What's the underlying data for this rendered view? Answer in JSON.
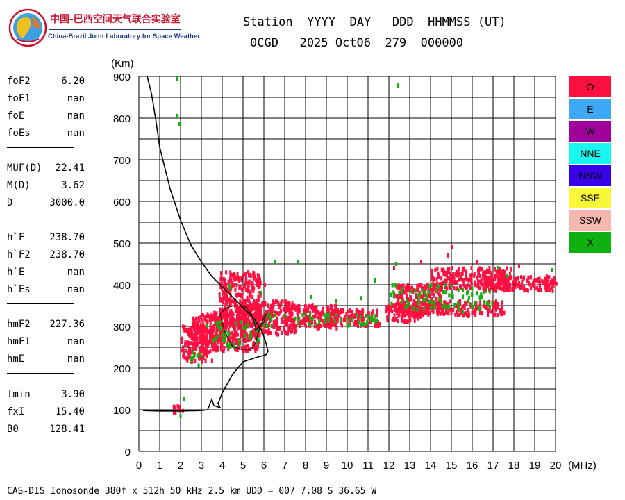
{
  "logo": {
    "icon": "earth-globe-logo",
    "name_cn": "中国-巴西空间天气联合实验室",
    "name_en": "China-Brazil Joint Laboratory for Space Weather"
  },
  "header": {
    "line1": "Station  YYYY  DAY   DDD  HHMMSS (UT)",
    "line2": "0CGD   2025 Oct06  279  000000"
  },
  "params": [
    {
      "label": "foF2",
      "value": "6.20"
    },
    {
      "label": "foF1",
      "value": "nan"
    },
    {
      "label": "foE",
      "value": "nan"
    },
    {
      "label": "foEs",
      "value": "nan"
    },
    {
      "label": "MUF(D)",
      "value": "22.41"
    },
    {
      "label": "M(D)",
      "value": "3.62"
    },
    {
      "label": "D",
      "value": "3000.0"
    },
    {
      "label": "h`F",
      "value": "238.70"
    },
    {
      "label": "h`F2",
      "value": "238.70"
    },
    {
      "label": "h`E",
      "value": "nan"
    },
    {
      "label": "h`Es",
      "value": "nan"
    },
    {
      "label": "hmF2",
      "value": "227.36"
    },
    {
      "label": "hmF1",
      "value": "nan"
    },
    {
      "label": "hmE",
      "value": "nan"
    },
    {
      "label": "fmin",
      "value": "3.90"
    },
    {
      "label": "fxI",
      "value": "15.40"
    },
    {
      "label": "B0",
      "value": "128.41"
    }
  ],
  "legend": [
    {
      "label": "O",
      "color": "#ff1040"
    },
    {
      "label": "E",
      "color": "#3ea8f5"
    },
    {
      "label": "W",
      "color": "#a0009a"
    },
    {
      "label": "NNE",
      "color": "#18f8f0"
    },
    {
      "label": "NNW",
      "color": "#3a00e8"
    },
    {
      "label": "SSE",
      "color": "#f8f838"
    },
    {
      "label": "SSW",
      "color": "#f6b8ae"
    },
    {
      "label": "X",
      "color": "#10b010"
    }
  ],
  "footer": "CAS-DIS Ionosonde 380f x 512h 50 kHz 2.5 km UDD = 007 7.08 S 36.65 W",
  "chart_data": {
    "type": "scatter",
    "xlabel": "(MHz)",
    "ylabel": "(Km)",
    "xlim": [
      0,
      20
    ],
    "ylim": [
      0,
      900
    ],
    "xticks": [
      0,
      1,
      2,
      3,
      4,
      5,
      6,
      7,
      8,
      9,
      10,
      11,
      12,
      13,
      14,
      15,
      16,
      17,
      18,
      19,
      20
    ],
    "yticks": [
      0,
      100,
      200,
      300,
      400,
      500,
      600,
      700,
      800,
      900
    ],
    "grid": true,
    "legend_placement": "right",
    "series": [
      {
        "name": "O",
        "color": "#ff1040",
        "regions": [
          {
            "x": [
              2.0,
              3.5
            ],
            "y": [
              215,
              300
            ]
          },
          {
            "x": [
              2.5,
              4.0
            ],
            "y": [
              260,
              330
            ]
          },
          {
            "x": [
              3.5,
              5.8
            ],
            "y": [
              240,
              340
            ]
          },
          {
            "x": [
              3.8,
              5.8
            ],
            "y": [
              300,
              430
            ]
          },
          {
            "x": [
              5.5,
              7.5
            ],
            "y": [
              280,
              360
            ]
          },
          {
            "x": [
              7.0,
              9.5
            ],
            "y": [
              295,
              350
            ]
          },
          {
            "x": [
              9.0,
              11.5
            ],
            "y": [
              300,
              340
            ]
          },
          {
            "x": [
              11.8,
              13.5
            ],
            "y": [
              310,
              350
            ]
          },
          {
            "x": [
              12.2,
              14.5
            ],
            "y": [
              330,
              400
            ]
          },
          {
            "x": [
              13.0,
              17.5
            ],
            "y": [
              325,
              360
            ]
          },
          {
            "x": [
              14.0,
              17.8
            ],
            "y": [
              390,
              440
            ]
          },
          {
            "x": [
              16.5,
              20.0
            ],
            "y": [
              385,
              420
            ]
          },
          {
            "x": [
              1.6,
              2.1
            ],
            "y": [
              90,
              110
            ]
          }
        ],
        "points": [
          [
            15.0,
            490
          ],
          [
            14.8,
            470
          ],
          [
            16.2,
            455
          ],
          [
            5.2,
            430
          ],
          [
            6.0,
            400
          ],
          [
            4.5,
            425
          ],
          [
            13.5,
            455
          ],
          [
            12.2,
            440
          ],
          [
            18.2,
            445
          ]
        ]
      },
      {
        "name": "X",
        "color": "#10b010",
        "regions": [
          {
            "x": [
              2.2,
              3.0
            ],
            "y": [
              205,
              240
            ]
          },
          {
            "x": [
              3.5,
              6.0
            ],
            "y": [
              250,
              310
            ]
          },
          {
            "x": [
              6.0,
              11.5
            ],
            "y": [
              300,
              330
            ]
          },
          {
            "x": [
              12.0,
              17.0
            ],
            "y": [
              340,
              400
            ]
          }
        ],
        "points": [
          [
            1.8,
            895
          ],
          [
            1.8,
            805
          ],
          [
            1.9,
            785
          ],
          [
            12.4,
            878
          ],
          [
            1.95,
            85
          ],
          [
            2.1,
            125
          ],
          [
            6.5,
            455
          ],
          [
            7.6,
            455
          ],
          [
            12.3,
            450
          ],
          [
            3.2,
            302
          ],
          [
            4.3,
            393
          ],
          [
            5.8,
            380
          ],
          [
            10.6,
            368
          ],
          [
            11.3,
            410
          ],
          [
            17.6,
            420
          ],
          [
            19.8,
            435
          ],
          [
            15.5,
            335
          ],
          [
            8.2,
            370
          ],
          [
            9.4,
            360
          ],
          [
            17.2,
            440
          ]
        ]
      }
    ],
    "profile_curve": [
      [
        0.4,
        900
      ],
      [
        0.6,
        860
      ],
      [
        0.8,
        800
      ],
      [
        1.0,
        730
      ],
      [
        1.5,
        630
      ],
      [
        2.0,
        555
      ],
      [
        2.5,
        495
      ],
      [
        3.0,
        455
      ],
      [
        3.5,
        420
      ],
      [
        4.0,
        395
      ],
      [
        4.5,
        370
      ],
      [
        5.0,
        345
      ],
      [
        5.5,
        320
      ],
      [
        5.9,
        290
      ],
      [
        6.1,
        260
      ],
      [
        6.2,
        240
      ],
      [
        6.1,
        232
      ],
      [
        5.6,
        225
      ],
      [
        5.0,
        215
      ],
      [
        4.5,
        185
      ],
      [
        4.0,
        140
      ],
      [
        3.8,
        115
      ],
      [
        3.9,
        105
      ],
      [
        3.6,
        110
      ],
      [
        3.5,
        125
      ],
      [
        3.3,
        100
      ],
      [
        3.0,
        98
      ],
      [
        2.0,
        97
      ],
      [
        1.0,
        97
      ],
      [
        0.2,
        98
      ]
    ],
    "trace_curve": [
      [
        3.9,
        330
      ],
      [
        4.2,
        345
      ],
      [
        4.6,
        350
      ],
      [
        5.1,
        348
      ],
      [
        5.4,
        330
      ],
      [
        5.6,
        300
      ],
      [
        5.6,
        290
      ],
      [
        6.0,
        310
      ],
      [
        6.1,
        330
      ],
      [
        5.9,
        310
      ],
      [
        5.7,
        280
      ],
      [
        5.6,
        260
      ],
      [
        5.4,
        245
      ],
      [
        4.9,
        245
      ],
      [
        4.5,
        252
      ],
      [
        4.3,
        270
      ],
      [
        4.1,
        290
      ],
      [
        3.9,
        330
      ]
    ]
  }
}
